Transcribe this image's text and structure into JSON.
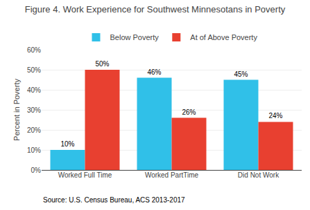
{
  "chart_data": {
    "type": "bar",
    "title": "Figure 4. Work Experience for Southwest Minnesotans in Poverty",
    "categories": [
      "Worked Full Time",
      "Worked PartTime",
      "Did Not Work"
    ],
    "series": [
      {
        "name": "Below Poverty",
        "color": "#30C0E8",
        "values": [
          10,
          46,
          45
        ],
        "value_labels": [
          "10%",
          "46%",
          "45%"
        ]
      },
      {
        "name": "At of Above Poverty",
        "color": "#E84030",
        "values": [
          50,
          26,
          24
        ],
        "value_labels": [
          "50%",
          "26%",
          "24%"
        ]
      }
    ],
    "ylabel": "Percent in Poverty",
    "ylim": [
      0,
      60
    ],
    "yticks": [
      {
        "value": 0,
        "label": "0%"
      },
      {
        "value": 10,
        "label": "10%"
      },
      {
        "value": 20,
        "label": "20%"
      },
      {
        "value": 30,
        "label": "30%"
      },
      {
        "value": 40,
        "label": "40%"
      },
      {
        "value": 50,
        "label": "50%"
      },
      {
        "value": 60,
        "label": "60%"
      }
    ],
    "grid": true,
    "legend": "top",
    "data_labels": true,
    "annotations": [
      "Source: U.S. Census Bureau, ACS 2013-2017"
    ]
  }
}
